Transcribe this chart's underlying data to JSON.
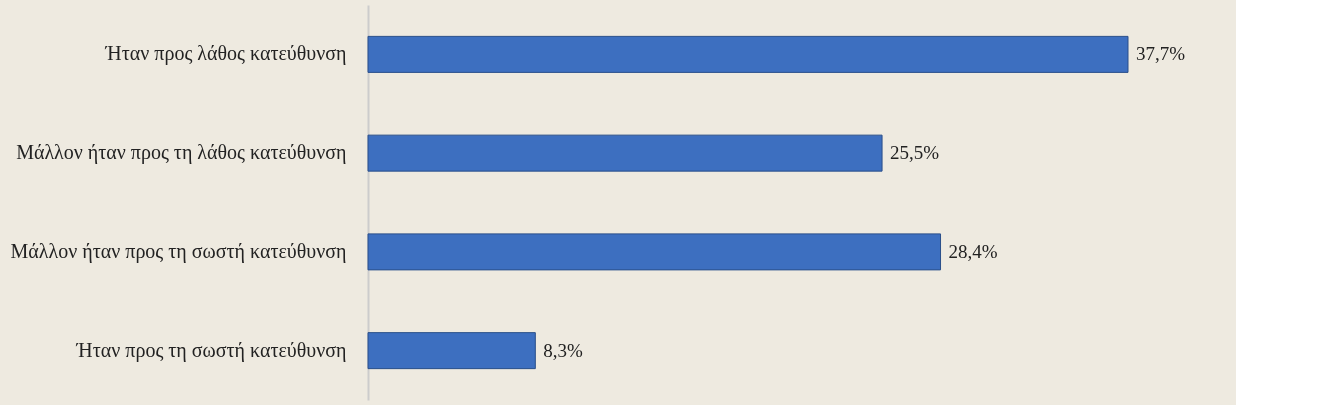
{
  "chart_data": {
    "type": "bar",
    "orientation": "horizontal",
    "categories": [
      "Ήταν προς λάθος κατεύθυνση",
      "Μάλλον ήταν προς τη λάθος κατεύθυνση",
      "Μάλλον ήταν προς τη σωστή κατεύθυνση",
      "Ήταν προς τη σωστή κατεύθυνση"
    ],
    "values": [
      37.7,
      25.5,
      28.4,
      8.3
    ],
    "value_labels": [
      "37,7%",
      "25,5%",
      "28,4%",
      "8,3%"
    ],
    "color": "#3d6fc0"
  }
}
